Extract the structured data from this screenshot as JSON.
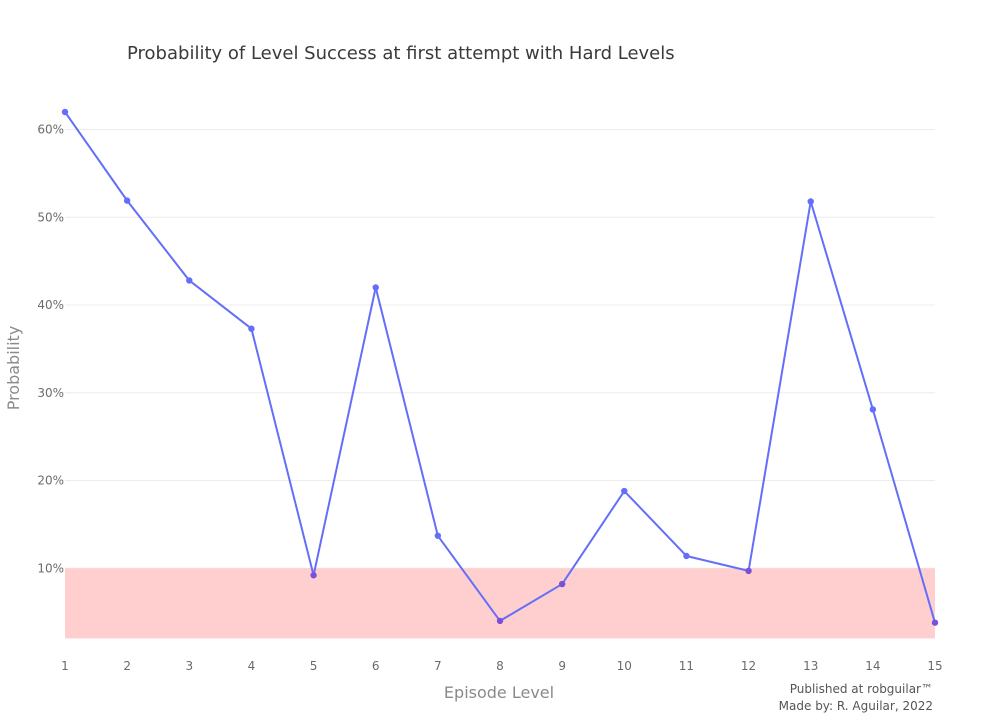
{
  "chart_data": {
    "type": "line",
    "title": "Probability of Level Success at first attempt with Hard Levels",
    "xlabel": "Episode Level",
    "ylabel": "Probability",
    "x": [
      1,
      2,
      3,
      4,
      5,
      6,
      7,
      8,
      9,
      10,
      11,
      12,
      13,
      14,
      15
    ],
    "series": [
      {
        "values": [
          0.62,
          0.519,
          0.428,
          0.373,
          0.092,
          0.42,
          0.137,
          0.04,
          0.082,
          0.188,
          0.114,
          0.097,
          0.518,
          0.281,
          0.038
        ],
        "color": "#636efa"
      }
    ],
    "y_ticks": [
      {
        "value": 0.1,
        "label": "10%"
      },
      {
        "value": 0.2,
        "label": "20%"
      },
      {
        "value": 0.3,
        "label": "30%"
      },
      {
        "value": 0.4,
        "label": "40%"
      },
      {
        "value": 0.5,
        "label": "50%"
      },
      {
        "value": 0.6,
        "label": "60%"
      }
    ],
    "x_ticks": [
      "1",
      "2",
      "3",
      "4",
      "5",
      "6",
      "7",
      "8",
      "9",
      "10",
      "11",
      "12",
      "13",
      "14",
      "15"
    ],
    "xlim": [
      1,
      15
    ],
    "ylim": [
      0.0,
      0.62
    ],
    "shaded_band": {
      "y_from": 0.02,
      "y_to": 0.1,
      "color": "#ffcccc"
    },
    "grid": true,
    "low_point_color": "#7b4fd6"
  },
  "footer": {
    "published": "Published at robguilar™",
    "made_by": "Made by:  R. Aguilar, 2022"
  }
}
